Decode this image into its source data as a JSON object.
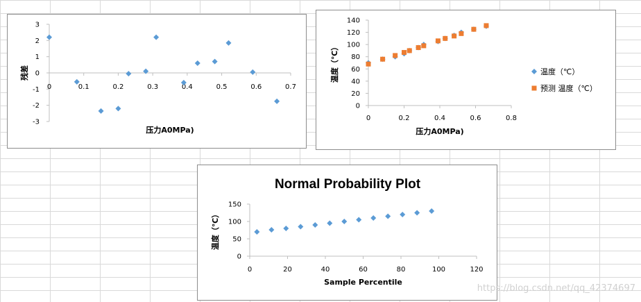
{
  "watermark": "https://blog.csdn.net/qq_42374697",
  "colors": {
    "blue": "#5b9bd5",
    "orange": "#ed7d31",
    "gridline": "#d9d9d9",
    "axis": "#bfbfbf"
  },
  "chart_data": [
    {
      "type": "scatter",
      "xlabel": "压力A0MPa)",
      "ylabel": "残差",
      "xlim": [
        0,
        0.7
      ],
      "ylim": [
        -3,
        3
      ],
      "xticks": [
        "0",
        "0.1",
        "0.2",
        "0.3",
        "0.4",
        "0.5",
        "0.6",
        "0.7"
      ],
      "yticks": [
        "-3",
        "-2",
        "-1",
        "0",
        "1",
        "2",
        "3"
      ],
      "grid": false,
      "series": [
        {
          "color": "#5b9bd5",
          "x": [
            0,
            0.08,
            0.15,
            0.2,
            0.23,
            0.28,
            0.31,
            0.39,
            0.43,
            0.48,
            0.52,
            0.59,
            0.66
          ],
          "y": [
            2.2,
            -0.55,
            -2.35,
            -2.2,
            -0.05,
            0.1,
            2.2,
            -0.6,
            0.6,
            0.7,
            1.85,
            0.05,
            -1.75
          ]
        }
      ]
    },
    {
      "type": "scatter",
      "xlabel": "压力A0MPa)",
      "ylabel": "温度（℃）",
      "xlim": [
        0,
        0.8
      ],
      "ylim": [
        0,
        140
      ],
      "xticks": [
        "0",
        "0.2",
        "0.4",
        "0.6",
        "0.8"
      ],
      "yticks": [
        "0",
        "20",
        "40",
        "60",
        "80",
        "100",
        "120",
        "140"
      ],
      "grid": false,
      "legend": "right",
      "series": [
        {
          "name": "温度（℃）",
          "marker": "diamond",
          "color": "#5b9bd5",
          "x": [
            0,
            0.08,
            0.15,
            0.2,
            0.23,
            0.28,
            0.31,
            0.39,
            0.43,
            0.48,
            0.52,
            0.59,
            0.66
          ],
          "y": [
            70,
            76,
            80,
            85,
            90,
            95,
            100,
            105,
            110,
            115,
            120,
            125,
            130
          ]
        },
        {
          "name": "预测 温度（℃）",
          "marker": "square",
          "color": "#ed7d31",
          "x": [
            0,
            0.08,
            0.15,
            0.2,
            0.23,
            0.28,
            0.31,
            0.39,
            0.43,
            0.48,
            0.52,
            0.59,
            0.66
          ],
          "y": [
            68,
            76,
            82,
            87,
            90,
            95,
            98,
            106,
            110,
            114,
            118,
            125,
            131
          ]
        }
      ]
    },
    {
      "type": "scatter",
      "title": "Normal Probability Plot",
      "xlabel": "Sample Percentile",
      "ylabel": "温度（℃）",
      "xlim": [
        0,
        120
      ],
      "ylim": [
        0,
        150
      ],
      "xticks": [
        "0",
        "20",
        "40",
        "60",
        "80",
        "100",
        "120"
      ],
      "yticks": [
        "0",
        "50",
        "100",
        "150"
      ],
      "grid": false,
      "series": [
        {
          "color": "#5b9bd5",
          "x": [
            3.8,
            11.5,
            19.2,
            26.9,
            34.6,
            42.3,
            50,
            57.7,
            65.4,
            73.1,
            80.8,
            88.5,
            96.2
          ],
          "y": [
            70,
            76,
            80,
            85,
            90,
            95,
            100,
            105,
            110,
            115,
            120,
            125,
            130
          ]
        }
      ]
    }
  ]
}
